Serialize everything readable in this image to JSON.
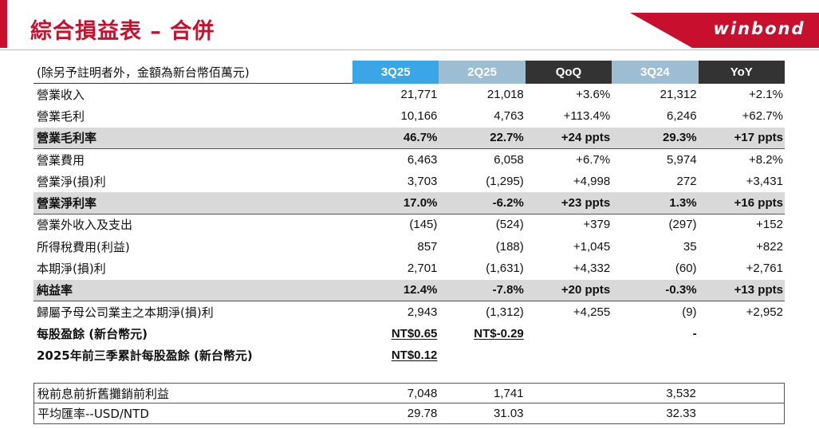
{
  "header": {
    "title": "綜合損益表 – 合併",
    "logo_text": "winbond",
    "accent_color": "#c8102e"
  },
  "table": {
    "unit_note": "(除另予註明者外，金額為新台幣佰萬元)",
    "columns": [
      "3Q25",
      "2Q25",
      "QoQ",
      "3Q24",
      "YoY"
    ],
    "rows": [
      {
        "label": "營業收入",
        "values": [
          "21,771",
          "21,018",
          "+3.6%",
          "21,312",
          "+2.1%"
        ]
      },
      {
        "label": "營業毛利",
        "values": [
          "10,166",
          "4,763",
          "+113.4%",
          "6,246",
          "+62.7%"
        ]
      },
      {
        "label": "營業毛利率",
        "values": [
          "46.7%",
          "22.7%",
          "+24 ppts",
          "29.3%",
          "+17 ppts"
        ]
      },
      {
        "label": "營業費用",
        "values": [
          "6,463",
          "6,058",
          "+6.7%",
          "5,974",
          "+8.2%"
        ]
      },
      {
        "label": "營業淨(損)利",
        "values": [
          "3,703",
          "(1,295)",
          "+4,998",
          "272",
          "+3,431"
        ]
      },
      {
        "label": "營業淨利率",
        "values": [
          "17.0%",
          "-6.2%",
          "+23 ppts",
          "1.3%",
          "+16 ppts"
        ]
      },
      {
        "label": "營業外收入及支出",
        "values": [
          "(145)",
          "(524)",
          "+379",
          "(297)",
          "+152"
        ]
      },
      {
        "label": "所得稅費用(利益)",
        "values": [
          "857",
          "(188)",
          "+1,045",
          "35",
          "+822"
        ]
      },
      {
        "label": "本期淨(損)利",
        "values": [
          "2,701",
          "(1,631)",
          "+4,332",
          "(60)",
          "+2,761"
        ]
      },
      {
        "label": "純益率",
        "values": [
          "12.4%",
          "-7.8%",
          "+20 ppts",
          "-0.3%",
          "+13 ppts"
        ]
      },
      {
        "label": "歸屬予母公司業主之本期淨(損)利",
        "values": [
          "2,943",
          "(1,312)",
          "+4,255",
          "(9)",
          "+2,952"
        ]
      }
    ],
    "eps": {
      "label": "每股盈餘 (新台幣元)",
      "values": [
        "NT$0.65",
        "NT$-0.29",
        "",
        "-",
        ""
      ]
    },
    "eps_ytd": {
      "label": "2025年前三季累計每股盈餘 (新台幣元)",
      "values": [
        "NT$0.12"
      ]
    },
    "bottom": [
      {
        "label": "稅前息前折舊攤銷前利益",
        "values": [
          "7,048",
          "1,741",
          "",
          "3,532",
          ""
        ]
      },
      {
        "label": "平均匯率--USD/NTD",
        "values": [
          "29.78",
          "31.03",
          "",
          "32.33",
          ""
        ]
      }
    ]
  }
}
